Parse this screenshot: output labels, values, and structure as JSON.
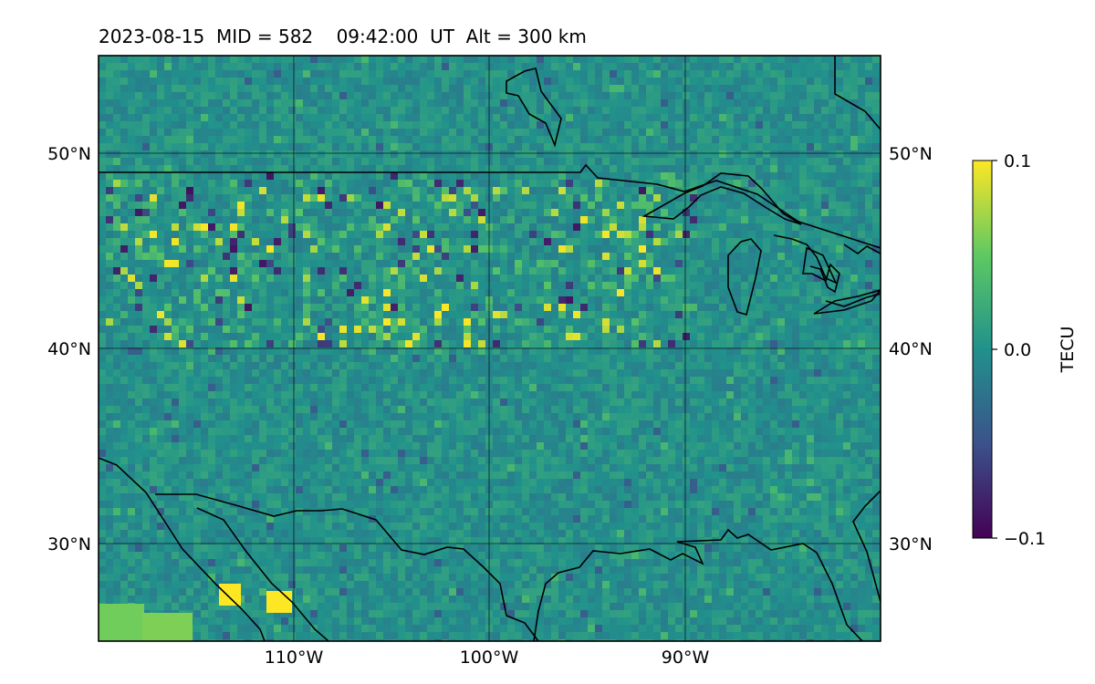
{
  "title": "2023-08-15  MID = 582    09:42:00  UT  Alt = 300 km",
  "map": {
    "lon_range": [
      -120,
      -80
    ],
    "lat_range": [
      25,
      55
    ],
    "lon_ticks": [
      {
        "value": -110,
        "label": "110°W"
      },
      {
        "value": -100,
        "label": "100°W"
      },
      {
        "value": -90,
        "label": "90°W"
      }
    ],
    "lat_ticks": [
      {
        "value": 50,
        "label": "50°N"
      },
      {
        "value": 40,
        "label": "40°N"
      },
      {
        "value": 30,
        "label": "30°N"
      }
    ],
    "field": "differential TEC, gridded, mostly near 0 TECU with scattered small positive/negative anomalies concentrated over the north-central U.S.",
    "colormap": "viridis",
    "grid": true
  },
  "colorbar": {
    "label": "TECU",
    "min": -0.1,
    "max": 0.1,
    "ticks": [
      {
        "value": 0.1,
        "label": "0.1"
      },
      {
        "value": 0.0,
        "label": "0.0"
      },
      {
        "value": -0.1,
        "label": "−0.1"
      }
    ],
    "colors": [
      "#440154",
      "#3b528b",
      "#21918c",
      "#5ec962",
      "#fde725"
    ]
  }
}
